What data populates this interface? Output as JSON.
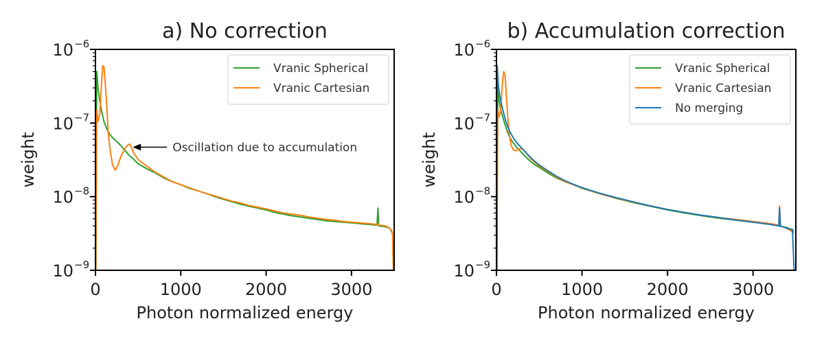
{
  "chart_data": [
    {
      "type": "line",
      "title": "a) No correction",
      "xlabel": "Photon normalized energy",
      "ylabel": "weight",
      "xlim": [
        0,
        3500
      ],
      "ylim": [
        1e-09,
        1e-06
      ],
      "yscale": "log",
      "xticks": [
        {
          "value": 0,
          "label": "0"
        },
        {
          "value": 1000,
          "label": "1000"
        },
        {
          "value": 2000,
          "label": "2000"
        },
        {
          "value": 3000,
          "label": "3000"
        }
      ],
      "yticks": [
        {
          "value": 1e-09,
          "base": "10",
          "exp": "−9"
        },
        {
          "value": 1e-08,
          "base": "10",
          "exp": "−8"
        },
        {
          "value": 1e-07,
          "base": "10",
          "exp": "−7"
        },
        {
          "value": 1e-06,
          "base": "10",
          "exp": "−6"
        }
      ],
      "legend": "top-right",
      "series": [
        {
          "name": "Vranic Spherical",
          "color": "#2ca02c",
          "x": [
            5,
            15,
            30,
            50,
            75,
            100,
            130,
            160,
            200,
            250,
            300,
            350,
            400,
            450,
            500,
            600,
            700,
            800,
            900,
            1000,
            1100,
            1200,
            1300,
            1400,
            1500,
            1600,
            1700,
            1800,
            1900,
            2000,
            2100,
            2200,
            2300,
            2400,
            2500,
            2600,
            2700,
            2800,
            2900,
            3000,
            3100,
            3200,
            3300,
            3310,
            3320,
            3400,
            3450,
            3480
          ],
          "y": [
            1e-09,
            5e-07,
            3e-07,
            2e-07,
            1.4e-07,
            1.05e-07,
            8.5e-08,
            7.2e-08,
            6.3e-08,
            5.6e-08,
            4.9e-08,
            4.2e-08,
            3.6e-08,
            3.2e-08,
            2.8e-08,
            2.4e-08,
            2.1e-08,
            1.8e-08,
            1.6e-08,
            1.45e-08,
            1.3e-08,
            1.2e-08,
            1.1e-08,
            1e-08,
            9.2e-09,
            8.5e-09,
            7.9e-09,
            7.4e-09,
            7e-09,
            6.6e-09,
            6.1e-09,
            5.8e-09,
            5.5e-09,
            5.3e-09,
            5.1e-09,
            4.9e-09,
            4.7e-09,
            4.6e-09,
            4.5e-09,
            4.4e-09,
            4.3e-09,
            4.2e-09,
            4.1e-09,
            7e-09,
            4e-09,
            3.9e-09,
            3.7e-09,
            3.2e-09
          ]
        },
        {
          "name": "Vranic Cartesian",
          "color": "#ff7f0e",
          "x": [
            5,
            15,
            30,
            50,
            70,
            85,
            100,
            115,
            130,
            150,
            170,
            200,
            230,
            260,
            290,
            320,
            350,
            380,
            400,
            420,
            450,
            500,
            600,
            700,
            800,
            900,
            1000,
            1100,
            1200,
            1300,
            1400,
            1500,
            1600,
            1700,
            1800,
            1900,
            2000,
            2100,
            2200,
            2300,
            2400,
            2500,
            2600,
            2700,
            2800,
            2900,
            3000,
            3100,
            3200,
            3300,
            3310,
            3320,
            3400,
            3450,
            3480,
            3490
          ],
          "y": [
            1e-09,
            1.5e-07,
            1.05e-07,
            1.3e-07,
            3.2e-07,
            6e-07,
            5.8e-07,
            3.5e-07,
            1.9e-07,
            7.5e-08,
            4.5e-08,
            2.7e-08,
            2.3e-08,
            2.6e-08,
            3.3e-08,
            4e-08,
            4.6e-08,
            5e-08,
            5.2e-08,
            4.7e-08,
            3.9e-08,
            3.2e-08,
            2.6e-08,
            2.15e-08,
            1.85e-08,
            1.6e-08,
            1.45e-08,
            1.32e-08,
            1.2e-08,
            1.1e-08,
            1.02e-08,
            9.4e-09,
            8.7e-09,
            8.2e-09,
            7.6e-09,
            7.2e-09,
            6.8e-09,
            6.4e-09,
            6e-09,
            5.8e-09,
            5.6e-09,
            5.3e-09,
            5.1e-09,
            4.9e-09,
            4.8e-09,
            4.6e-09,
            4.5e-09,
            4.4e-09,
            4.3e-09,
            4.2e-09,
            4.3e-09,
            4.1e-09,
            4e-09,
            3.7e-09,
            3.3e-09,
            1e-09
          ]
        }
      ],
      "annotations": [
        {
          "text": "Oscillation due to accumulation",
          "x": 420,
          "y": 4.7e-08
        }
      ]
    },
    {
      "type": "line",
      "title": "b) Accumulation correction",
      "xlabel": "Photon normalized energy",
      "ylabel": "weight",
      "xlim": [
        0,
        3500
      ],
      "ylim": [
        1e-09,
        1e-06
      ],
      "yscale": "log",
      "xticks": [
        {
          "value": 0,
          "label": "0"
        },
        {
          "value": 1000,
          "label": "1000"
        },
        {
          "value": 2000,
          "label": "2000"
        },
        {
          "value": 3000,
          "label": "3000"
        }
      ],
      "yticks": [
        {
          "value": 1e-09,
          "base": "10",
          "exp": "−9"
        },
        {
          "value": 1e-08,
          "base": "10",
          "exp": "−8"
        },
        {
          "value": 1e-07,
          "base": "10",
          "exp": "−7"
        },
        {
          "value": 1e-06,
          "base": "10",
          "exp": "−6"
        }
      ],
      "legend": "top-right",
      "series": [
        {
          "name": "Vranic Spherical",
          "color": "#2ca02c",
          "x": [
            5,
            15,
            30,
            50,
            75,
            100,
            130,
            160,
            200,
            250,
            300,
            350,
            400,
            450,
            500,
            600,
            700,
            800,
            900,
            1000,
            1200,
            1400,
            1600,
            1800,
            2000,
            2200,
            2400,
            2600,
            2800,
            3000,
            3200,
            3300,
            3400,
            3480
          ],
          "y": [
            1e-09,
            3e-07,
            2e-07,
            1.5e-07,
            1.2e-07,
            9.5e-08,
            7.5e-08,
            6.2e-08,
            5.3e-08,
            4.5e-08,
            3.9e-08,
            3.4e-08,
            3e-08,
            2.7e-08,
            2.5e-08,
            2.1e-08,
            1.8e-08,
            1.6e-08,
            1.45e-08,
            1.3e-08,
            1.1e-08,
            9.5e-09,
            8.3e-09,
            7.4e-09,
            6.6e-09,
            6e-09,
            5.5e-09,
            5.1e-09,
            4.8e-09,
            4.5e-09,
            4.2e-09,
            4e-09,
            3.8e-09,
            3.4e-09
          ]
        },
        {
          "name": "Vranic Cartesian",
          "color": "#ff7f0e",
          "x": [
            5,
            15,
            30,
            50,
            70,
            85,
            100,
            115,
            130,
            150,
            170,
            200,
            230,
            260,
            290,
            320,
            350,
            400,
            450,
            500,
            600,
            700,
            800,
            900,
            1000,
            1200,
            1400,
            1600,
            1800,
            2000,
            2200,
            2400,
            2600,
            2800,
            3000,
            3200,
            3300,
            3310,
            3320,
            3400,
            3480
          ],
          "y": [
            1e-09,
            1.5e-07,
            1.2e-07,
            1.5e-07,
            3.5e-07,
            5e-07,
            4.5e-07,
            2.5e-07,
            1.3e-07,
            7e-08,
            5e-08,
            4.3e-08,
            4.2e-08,
            4.4e-08,
            4.5e-08,
            4.3e-08,
            3.9e-08,
            3.3e-08,
            2.9e-08,
            2.6e-08,
            2.2e-08,
            1.85e-08,
            1.6e-08,
            1.45e-08,
            1.32e-08,
            1.1e-08,
            9.6e-09,
            8.4e-09,
            7.5e-09,
            6.7e-09,
            6.1e-09,
            5.6e-09,
            5.2e-09,
            4.9e-09,
            4.6e-09,
            4.3e-09,
            4.1e-09,
            7.5e-09,
            4e-09,
            3.7e-09,
            3.2e-09
          ]
        },
        {
          "name": "No merging",
          "color": "#1f77b4",
          "x": [
            5,
            10,
            20,
            35,
            50,
            75,
            100,
            130,
            160,
            200,
            250,
            300,
            350,
            400,
            450,
            500,
            600,
            700,
            800,
            900,
            1000,
            1200,
            1400,
            1600,
            1800,
            2000,
            2200,
            2400,
            2600,
            2800,
            3000,
            3200,
            3300,
            3310,
            3320,
            3400,
            3460,
            3480
          ],
          "y": [
            1e-09,
            6e-07,
            3.5e-07,
            2.5e-07,
            2e-07,
            1.5e-07,
            1.15e-07,
            9e-08,
            7.5e-08,
            6.2e-08,
            5.2e-08,
            4.5e-08,
            3.9e-08,
            3.4e-08,
            3e-08,
            2.7e-08,
            2.25e-08,
            1.9e-08,
            1.65e-08,
            1.47e-08,
            1.33e-08,
            1.12e-08,
            9.7e-09,
            8.5e-09,
            7.5e-09,
            6.7e-09,
            6.1e-09,
            5.6e-09,
            5.2e-09,
            4.8e-09,
            4.5e-09,
            4.2e-09,
            4e-09,
            7e-09,
            4e-09,
            3.7e-09,
            3.6e-09,
            1e-09
          ]
        }
      ]
    }
  ]
}
